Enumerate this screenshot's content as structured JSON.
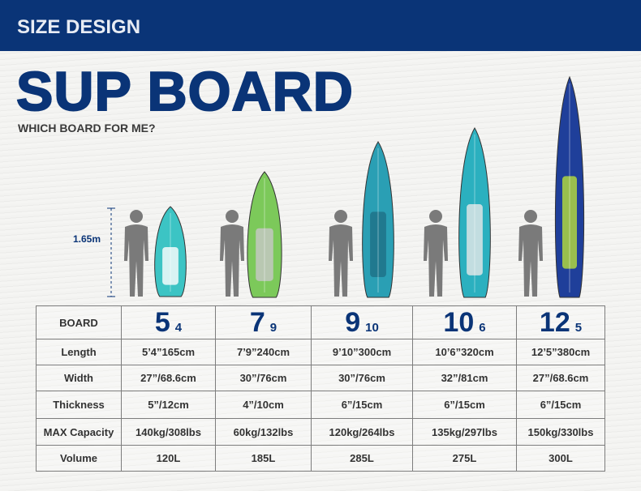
{
  "banner": {
    "title": "SIZE DESIGN"
  },
  "heading": {
    "title": "SUP BOARD",
    "subtitle": "WHICH BOARD FOR ME?"
  },
  "person_height": "1.65m",
  "colors": {
    "brand": "#0a3477",
    "text": "#333333"
  },
  "table": {
    "row_labels": [
      "BOARD",
      "Length",
      "Width",
      "Thickness",
      "MAX Capacity",
      "Volume"
    ],
    "boards": [
      {
        "feet": "5",
        "inches": "4",
        "length": "5’4”165cm",
        "width": "27”/68.6cm",
        "thickness": "5”/12cm",
        "capacity": "140kg/308lbs",
        "volume": "120L"
      },
      {
        "feet": "7",
        "inches": "9",
        "length": "7’9”240cm",
        "width": "30”/76cm",
        "thickness": "4”/10cm",
        "capacity": "60kg/132lbs",
        "volume": "185L"
      },
      {
        "feet": "9",
        "inches": "10",
        "length": "9’10”300cm",
        "width": "30”/76cm",
        "thickness": "6”/15cm",
        "capacity": "120kg/264lbs",
        "volume": "285L"
      },
      {
        "feet": "10",
        "inches": "6",
        "length": "10’6”320cm",
        "width": "32”/81cm",
        "thickness": "6”/15cm",
        "capacity": "135kg/297lbs",
        "volume": "275L"
      },
      {
        "feet": "12",
        "inches": "5",
        "length": "12’5”380cm",
        "width": "27”/68.6cm",
        "thickness": "6”/15cm",
        "capacity": "150kg/330lbs",
        "volume": "300L"
      }
    ]
  },
  "board_colors": [
    {
      "main": "#3cc4c4",
      "accent": "#ffffff"
    },
    {
      "main": "#7cc95a",
      "accent": "#c8c8c8"
    },
    {
      "main": "#2a9fb4",
      "accent": "#1e6f86"
    },
    {
      "main": "#2bb0bf",
      "accent": "#e8e8e8"
    },
    {
      "main": "#1f3f9a",
      "accent": "#b8e03a"
    }
  ]
}
